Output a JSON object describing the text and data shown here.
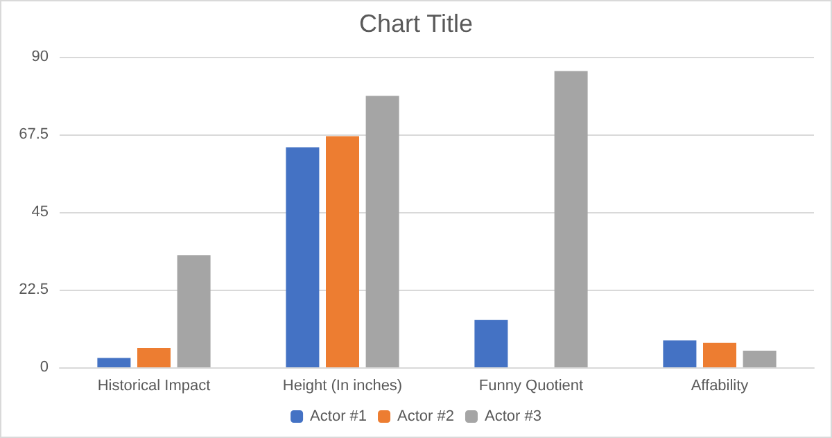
{
  "chart_data": {
    "type": "bar",
    "title": "Chart Title",
    "categories": [
      "Historical Impact",
      "Height (In inches)",
      "Funny Quotient",
      "Affability"
    ],
    "series": [
      {
        "name": "Actor #1",
        "color": "#4472c4",
        "values": [
          2.7,
          63.8,
          13.7,
          7.8
        ]
      },
      {
        "name": "Actor #2",
        "color": "#ed7d31",
        "values": [
          5.6,
          67,
          0,
          7.1
        ]
      },
      {
        "name": "Actor #3",
        "color": "#a5a5a5",
        "values": [
          32.5,
          78.7,
          85.9,
          4.8
        ]
      }
    ],
    "ylim": [
      0,
      90
    ],
    "yticks": [
      0,
      22.5,
      45,
      67.5,
      90
    ],
    "grid": "y",
    "legend": "bottom"
  }
}
